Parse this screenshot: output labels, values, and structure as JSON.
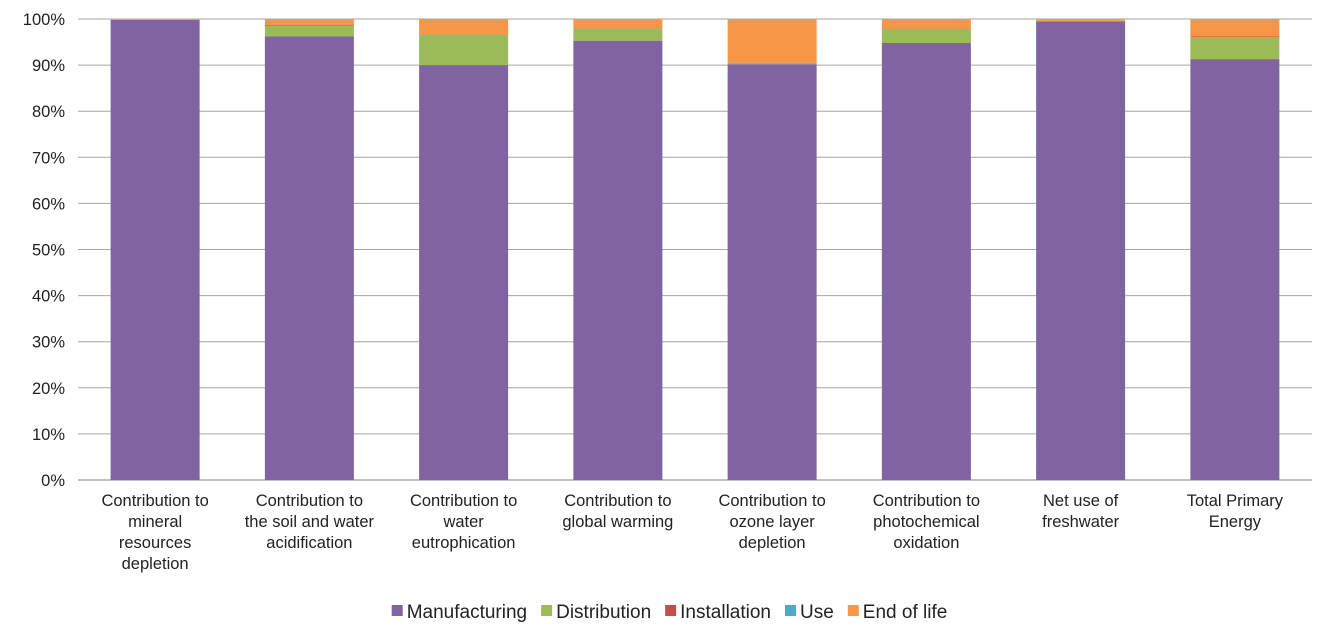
{
  "chart_data": {
    "type": "bar",
    "stacked": true,
    "percent": true,
    "title": "",
    "xlabel": "",
    "ylabel": "",
    "ylim": [
      0,
      100
    ],
    "yticks": [
      "0%",
      "10%",
      "20%",
      "30%",
      "40%",
      "50%",
      "60%",
      "70%",
      "80%",
      "90%",
      "100%"
    ],
    "grid": true,
    "legend_position": "bottom",
    "categories": [
      [
        "Contribution to",
        "mineral",
        "resources",
        "depletion"
      ],
      [
        "Contribution to",
        "the soil and water",
        "acidification"
      ],
      [
        "Contribution to",
        "water",
        "eutrophication"
      ],
      [
        "Contribution to",
        "global warming"
      ],
      [
        "Contribution to",
        "ozone layer",
        "depletion"
      ],
      [
        "Contribution to",
        "photochemical",
        "oxidation"
      ],
      [
        "Net use of",
        "freshwater"
      ],
      [
        "Total Primary",
        "Energy"
      ]
    ],
    "series": [
      {
        "name": "Manufacturing",
        "color": "#8064a2",
        "values": [
          99.8,
          96.2,
          90.0,
          95.3,
          90.2,
          94.8,
          99.5,
          91.3
        ]
      },
      {
        "name": "Distribution",
        "color": "#9bbb59",
        "values": [
          0.1,
          2.4,
          6.6,
          2.6,
          0.2,
          3.0,
          0.1,
          4.8
        ]
      },
      {
        "name": "Installation",
        "color": "#c0504d",
        "values": [
          0.0,
          0.1,
          0.1,
          0.1,
          0.1,
          0.1,
          0.0,
          0.1
        ]
      },
      {
        "name": "Use",
        "color": "#4bacc6",
        "values": [
          0.0,
          0.0,
          0.0,
          0.0,
          0.0,
          0.0,
          0.0,
          0.0
        ]
      },
      {
        "name": "End of life",
        "color": "#f79646",
        "values": [
          0.1,
          1.3,
          3.3,
          2.0,
          9.5,
          2.1,
          0.4,
          3.8
        ]
      }
    ]
  }
}
